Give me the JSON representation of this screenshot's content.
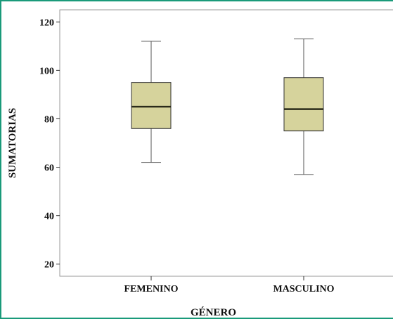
{
  "colors": {
    "frame_border": "#1a9a7a",
    "box_fill": "#d6d39c",
    "box_stroke": "#333333",
    "median": "#2b2b1a",
    "whisker": "#555555"
  },
  "chart_data": {
    "type": "boxplot",
    "title": "",
    "xlabel": "GÉNERO",
    "ylabel": "SUMATORIAS",
    "ylim": [
      15,
      125
    ],
    "yticks": [
      20,
      40,
      60,
      80,
      100,
      120
    ],
    "grid": false,
    "categories": [
      "FEMENINO",
      "MASCULINO"
    ],
    "boxes": [
      {
        "label": "FEMENINO",
        "min": 62,
        "q1": 76,
        "median": 85,
        "q3": 95,
        "max": 112
      },
      {
        "label": "MASCULINO",
        "min": 57,
        "q1": 75,
        "median": 84,
        "q3": 97,
        "max": 113
      }
    ]
  }
}
